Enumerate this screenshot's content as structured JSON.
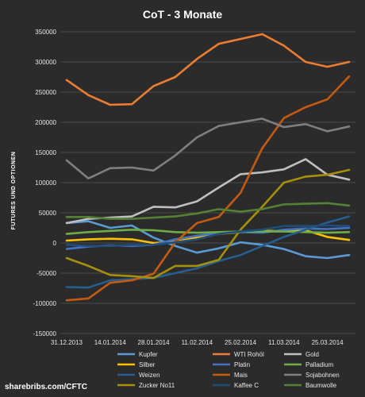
{
  "chart_data": {
    "type": "line",
    "title": "CoT - 3 Monate",
    "ylabel": "FUTURES UND OPTIONEN",
    "xlabel": "",
    "ylim": [
      -150000,
      350000
    ],
    "yticks": [
      -150000,
      -100000,
      -50000,
      0,
      50000,
      100000,
      150000,
      200000,
      250000,
      300000,
      350000
    ],
    "ytick_labels": [
      "-150000",
      "-100000",
      "-50000",
      "0",
      "50000",
      "100000",
      "150000",
      "200000",
      "250000",
      "300000",
      "350000"
    ],
    "x": [
      "31.12.2013",
      "07.01.2014",
      "14.01.2014",
      "21.01.2014",
      "28.01.2014",
      "04.02.2014",
      "11.02.2014",
      "18.02.2014",
      "25.02.2014",
      "04.03.2014",
      "11.03.2014",
      "18.03.2014",
      "25.03.2014",
      "01.04.2014"
    ],
    "xtick_labels": [
      "31.12.2013",
      "14.01.2014",
      "28.01.2014",
      "11.02.2014",
      "25.02.2014",
      "11.03.2014",
      "25.03.2014"
    ],
    "xtick_indices": [
      0,
      2,
      4,
      6,
      8,
      10,
      12
    ],
    "grid": true,
    "legend_position": "bottom",
    "series": [
      {
        "name": "Kupfer",
        "color": "#5b9bd5",
        "values": [
          33000,
          36000,
          25000,
          29000,
          9000,
          -5000,
          -16000,
          -9000,
          1000,
          -3000,
          -10000,
          -22000,
          -25000,
          -20000
        ]
      },
      {
        "name": "WTI Rohöl",
        "color": "#ed7d31",
        "values": [
          270000,
          245000,
          229000,
          230000,
          260000,
          275000,
          305000,
          330000,
          338000,
          346000,
          327000,
          300000,
          292000,
          300000
        ]
      },
      {
        "name": "Gold",
        "color": "#bfbfbf",
        "values": [
          33000,
          40000,
          42000,
          44000,
          60000,
          59000,
          69000,
          92000,
          114000,
          117000,
          122000,
          139000,
          113000,
          105000
        ]
      },
      {
        "name": "Silber",
        "color": "#ffc000",
        "values": [
          4000,
          6000,
          7000,
          6000,
          0,
          2000,
          9000,
          15000,
          18000,
          20000,
          20000,
          21000,
          10000,
          5000
        ]
      },
      {
        "name": "Platin",
        "color": "#4472c4",
        "values": [
          -10000,
          -6000,
          -4000,
          -5000,
          -3000,
          6000,
          12000,
          17000,
          18000,
          17000,
          22000,
          24000,
          23000,
          25000
        ]
      },
      {
        "name": "Palladium",
        "color": "#70ad47",
        "values": [
          15000,
          18000,
          20000,
          22000,
          21000,
          18000,
          17000,
          18000,
          19000,
          19000,
          19000,
          18000,
          17000,
          18000
        ]
      },
      {
        "name": "Weizen",
        "color": "#255e91",
        "values": [
          -73000,
          -74000,
          -62000,
          -60000,
          -58000,
          -50000,
          -42000,
          -30000,
          -20000,
          -5000,
          10000,
          22000,
          34000,
          44000
        ]
      },
      {
        "name": "Mais",
        "color": "#c55a11",
        "values": [
          -95000,
          -92000,
          -66000,
          -62000,
          -51000,
          1000,
          33000,
          43000,
          83000,
          157000,
          207000,
          225000,
          238000,
          276000
        ]
      },
      {
        "name": "Sojabohnen",
        "color": "#7f7f7f",
        "values": [
          137000,
          107000,
          124000,
          125000,
          120000,
          145000,
          175000,
          194000,
          200000,
          206000,
          192000,
          197000,
          185000,
          193000
        ]
      },
      {
        "name": "Zucker No11",
        "color": "#a5900a",
        "values": [
          -25000,
          -38000,
          -53000,
          -55000,
          -58000,
          -38000,
          -38000,
          -28000,
          22000,
          60000,
          100000,
          110000,
          113000,
          121000
        ]
      },
      {
        "name": "Kaffee C",
        "color": "#1f4e79",
        "values": [
          -3000,
          -5000,
          -5000,
          -3000,
          -3000,
          1000,
          6000,
          15000,
          19000,
          22000,
          28000,
          28000,
          29000,
          28000
        ]
      },
      {
        "name": "Baumwolle",
        "color": "#548235",
        "values": [
          43000,
          43000,
          40000,
          40000,
          42000,
          44000,
          49000,
          56000,
          52000,
          56000,
          64000,
          65000,
          66000,
          62000
        ]
      }
    ]
  },
  "source": "sharebribs.com/CFTC"
}
